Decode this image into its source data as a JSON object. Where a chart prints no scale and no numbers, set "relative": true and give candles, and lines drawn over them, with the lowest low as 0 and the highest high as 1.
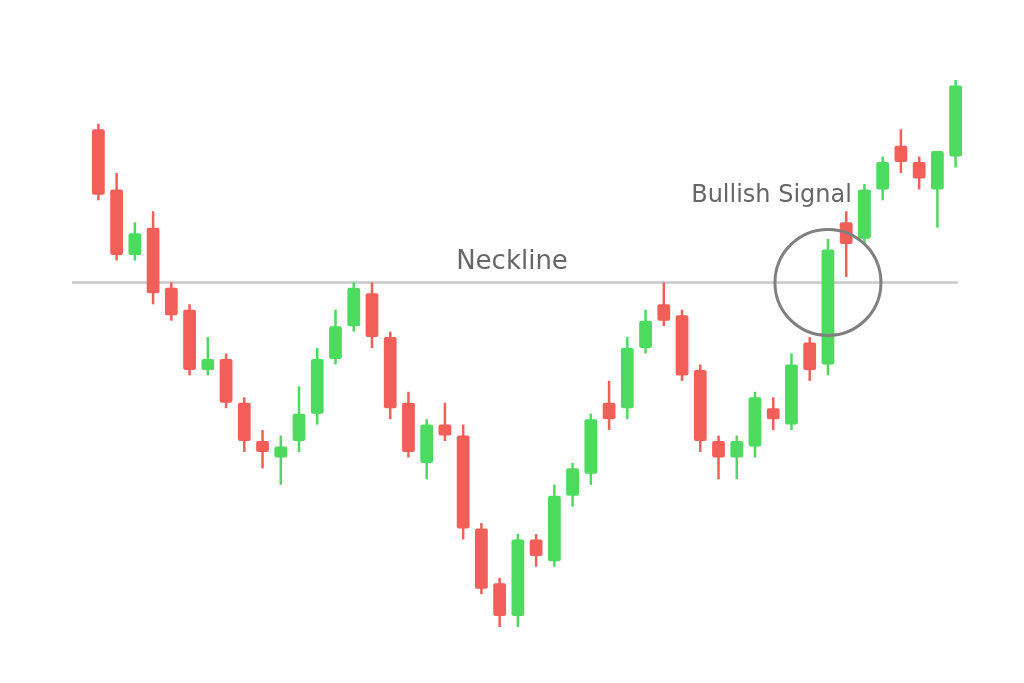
{
  "chart_data": {
    "type": "candlestick",
    "relative": true,
    "categories": [
      null,
      null,
      null,
      null,
      null,
      null,
      null,
      null,
      null,
      null,
      null,
      null,
      null,
      null,
      null,
      null,
      null,
      null,
      null,
      null,
      null,
      null,
      null,
      null,
      null,
      null,
      null,
      null,
      null,
      null,
      null,
      null,
      null,
      null,
      null,
      null,
      null,
      null,
      null,
      null,
      null,
      null,
      null,
      null,
      null,
      null,
      null,
      null
    ],
    "ohlc": [
      [
        0.91,
        0.92,
        0.78,
        0.79
      ],
      [
        0.8,
        0.83,
        0.67,
        0.68
      ],
      [
        0.68,
        0.74,
        0.67,
        0.72
      ],
      [
        0.73,
        0.76,
        0.59,
        0.61
      ],
      [
        0.62,
        0.63,
        0.56,
        0.57
      ],
      [
        0.58,
        0.59,
        0.46,
        0.47
      ],
      [
        0.47,
        0.53,
        0.46,
        0.49
      ],
      [
        0.49,
        0.5,
        0.4,
        0.41
      ],
      [
        0.41,
        0.42,
        0.32,
        0.34
      ],
      [
        0.34,
        0.36,
        0.29,
        0.32
      ],
      [
        0.31,
        0.35,
        0.26,
        0.33
      ],
      [
        0.34,
        0.44,
        0.32,
        0.39
      ],
      [
        0.39,
        0.51,
        0.37,
        0.49
      ],
      [
        0.49,
        0.58,
        0.48,
        0.55
      ],
      [
        0.55,
        0.63,
        0.54,
        0.62
      ],
      [
        0.61,
        0.63,
        0.51,
        0.53
      ],
      [
        0.53,
        0.54,
        0.38,
        0.4
      ],
      [
        0.41,
        0.43,
        0.31,
        0.32
      ],
      [
        0.3,
        0.38,
        0.27,
        0.37
      ],
      [
        0.37,
        0.41,
        0.34,
        0.35
      ],
      [
        0.35,
        0.37,
        0.16,
        0.18
      ],
      [
        0.18,
        0.19,
        0.06,
        0.07
      ],
      [
        0.08,
        0.09,
        0,
        0.02
      ],
      [
        0.02,
        0.17,
        0,
        0.16
      ],
      [
        0.16,
        0.17,
        0.11,
        0.13
      ],
      [
        0.12,
        0.26,
        0.11,
        0.24
      ],
      [
        0.24,
        0.3,
        0.22,
        0.29
      ],
      [
        0.28,
        0.39,
        0.26,
        0.38
      ],
      [
        0.41,
        0.45,
        0.36,
        0.38
      ],
      [
        0.4,
        0.53,
        0.38,
        0.51
      ],
      [
        0.51,
        0.58,
        0.5,
        0.56
      ],
      [
        0.59,
        0.63,
        0.55,
        0.56
      ],
      [
        0.57,
        0.58,
        0.45,
        0.46
      ],
      [
        0.47,
        0.48,
        0.32,
        0.34
      ],
      [
        0.34,
        0.35,
        0.27,
        0.31
      ],
      [
        0.31,
        0.35,
        0.27,
        0.34
      ],
      [
        0.33,
        0.43,
        0.31,
        0.42
      ],
      [
        0.4,
        0.42,
        0.36,
        0.38
      ],
      [
        0.37,
        0.5,
        0.36,
        0.48
      ],
      [
        0.52,
        0.53,
        0.45,
        0.47
      ],
      [
        0.48,
        0.71,
        0.46,
        0.69
      ],
      [
        0.74,
        0.76,
        0.64,
        0.7
      ],
      [
        0.71,
        0.81,
        0.7,
        0.8
      ],
      [
        0.8,
        0.86,
        0.78,
        0.85
      ],
      [
        0.88,
        0.91,
        0.83,
        0.85
      ],
      [
        0.85,
        0.86,
        0.8,
        0.82
      ],
      [
        0.8,
        0.87,
        0.73,
        0.87
      ],
      [
        0.86,
        1,
        0.84,
        0.99
      ]
    ],
    "ref_lines": [
      {
        "axis": "y",
        "value": 0.63,
        "label": "Neckline",
        "color": "#c8c8c8"
      }
    ],
    "annotations": [
      "Bullish Signal"
    ]
  }
}
